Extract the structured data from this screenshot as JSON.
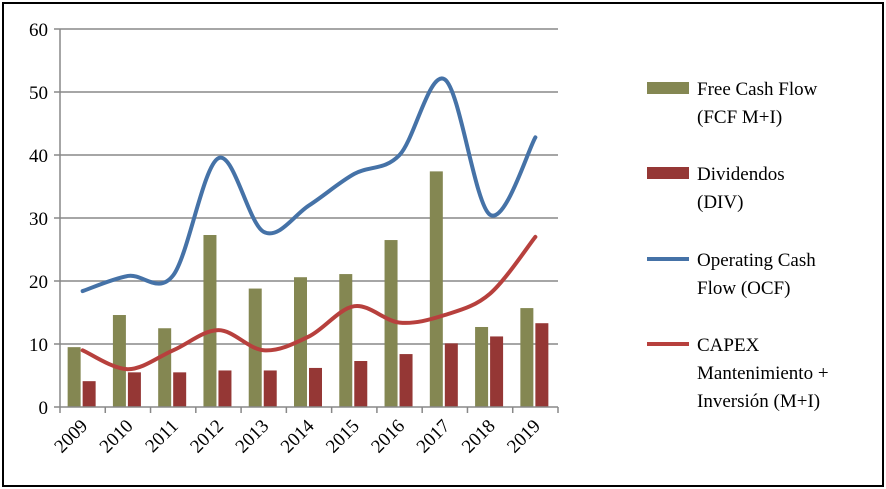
{
  "chart_data": {
    "type": "bar",
    "title": "",
    "xlabel": "",
    "ylabel": "",
    "ylim": [
      0,
      60
    ],
    "yticks": [
      0,
      10,
      20,
      30,
      40,
      50,
      60
    ],
    "grid": true,
    "legend_position": "right",
    "categories": [
      "2009",
      "2010",
      "2011",
      "2012",
      "2013",
      "2014",
      "2015",
      "2016",
      "2017",
      "2018",
      "2019"
    ],
    "series": [
      {
        "name": "Free Cash Flow (FCF M+I)",
        "legend_lines": [
          "Free Cash Flow",
          "(FCF M+I)"
        ],
        "kind": "bar",
        "color": "#848752",
        "values": [
          9.5,
          14.6,
          12.5,
          27.3,
          18.8,
          20.6,
          21.1,
          26.5,
          37.4,
          12.7,
          15.7
        ]
      },
      {
        "name": "Dividendos (DIV)",
        "legend_lines": [
          "Dividendos",
          "(DIV)"
        ],
        "kind": "bar",
        "color": "#953735",
        "values": [
          4.1,
          5.5,
          5.5,
          5.8,
          5.8,
          6.2,
          7.3,
          8.4,
          10.1,
          11.2,
          13.3
        ]
      },
      {
        "name": "Operating Cash Flow (OCF)",
        "legend_lines": [
          "Operating Cash",
          "Flow (OCF)"
        ],
        "kind": "line",
        "color": "#4572a7",
        "values": [
          18.4,
          20.8,
          20.9,
          39.5,
          27.8,
          32.0,
          37.0,
          40.0,
          52.0,
          30.5,
          42.8
        ]
      },
      {
        "name": "CAPEX Mantenimiento + Inversión (M+I)",
        "legend_lines": [
          "CAPEX",
          "Mantenimiento +",
          "Inversión (M+I)"
        ],
        "kind": "line",
        "color": "#b7403d",
        "values": [
          9.0,
          6.0,
          9.0,
          12.2,
          9.0,
          11.2,
          16.0,
          13.4,
          14.6,
          18.0,
          27.0
        ]
      }
    ]
  }
}
